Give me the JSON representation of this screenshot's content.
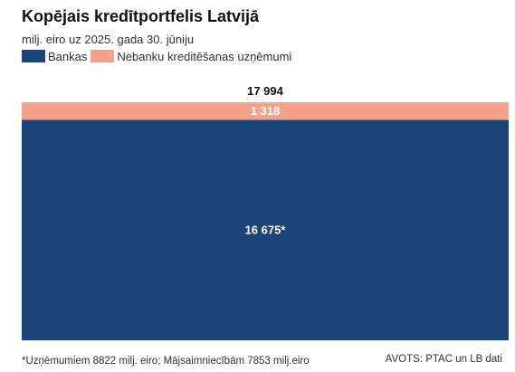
{
  "title": "Kopējais kredītportfelis Latvijā",
  "subtitle": "milj. eiro uz 2025. gada 30. jūniju",
  "legend": [
    {
      "label": "Bankas",
      "color": "#1d4478"
    },
    {
      "label": "Nebanku kreditēšanas uzņēmumi",
      "color": "#f4a38a"
    }
  ],
  "chart_data": {
    "type": "bar",
    "stacked": true,
    "categories": [
      ""
    ],
    "series": [
      {
        "name": "Bankas",
        "values": [
          16675
        ],
        "label": "16 675*",
        "color": "#1d4478"
      },
      {
        "name": "Nebanku kreditēšanas uzņēmumi",
        "values": [
          1318
        ],
        "label": "1 318",
        "color": "#f4a38a"
      }
    ],
    "total": 17994,
    "total_label": "17 994",
    "title": "Kopējais kredītportfelis Latvijā",
    "subtitle": "milj. eiro uz 2025. gada 30. jūniju",
    "legend_position": "top-left",
    "grid": false
  },
  "footnote": "*Uzņēmumiem 8822 milj. eiro; Mājsaimniecībām 7853 milj.eiro",
  "source": "AVOTS: PTAC un LB dati"
}
